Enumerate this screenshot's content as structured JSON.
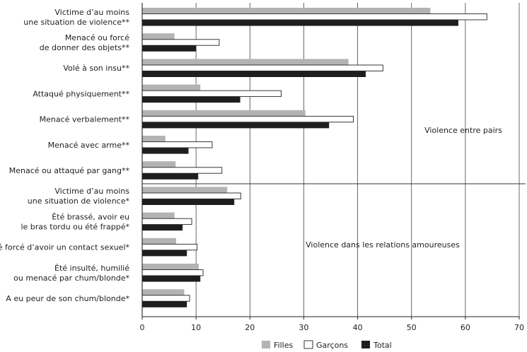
{
  "chart_data": {
    "type": "bar",
    "orientation": "horizontal",
    "xlim": [
      0,
      70
    ],
    "xticks": [
      0,
      10,
      20,
      30,
      40,
      50,
      60,
      70
    ],
    "grid": "vertical",
    "categories": [
      [
        "Victime d’au moins",
        "une situation de violence**"
      ],
      [
        "Menacé ou forcé",
        "de donner des objets**"
      ],
      [
        "Volé à son insu**"
      ],
      [
        "Attaqué physiquement**"
      ],
      [
        "Menacé verbalement**"
      ],
      [
        "Menacé avec arme**"
      ],
      [
        "Menacé ou attaqué par gang**"
      ],
      [
        "Victime d’au moins",
        "une situation de violence*"
      ],
      [
        "Été brassé, avoir eu",
        "le bras tordu ou été frappé*"
      ],
      [
        "Été forcé d’avoir un contact sexuel*"
      ],
      [
        "Été insulté, humilié",
        "ou menacé par chum/blonde*"
      ],
      [
        "A eu peur de son chum/blonde*"
      ]
    ],
    "series": [
      {
        "name": "Filles",
        "color": "#b3b3b3",
        "values": [
          53.5,
          6,
          38.3,
          10.8,
          30.3,
          4.3,
          6.2,
          15.8,
          6,
          6.3,
          10.5,
          7.8
        ]
      },
      {
        "name": "Garçons",
        "color": "#ffffff",
        "values": [
          64,
          14.3,
          44.7,
          25.8,
          39.2,
          13,
          14.8,
          18.3,
          9.2,
          10.2,
          11.3,
          8.8
        ]
      },
      {
        "name": "Total",
        "color": "#1e1e1e",
        "values": [
          58.7,
          10,
          41.5,
          18.2,
          34.7,
          8.6,
          10.4,
          17.1,
          7.5,
          8.3,
          10.8,
          8.3
        ]
      }
    ],
    "group_labels": [
      {
        "text": "Violence entre pairs"
      },
      {
        "text": "Violence dans les relations amoureuses"
      }
    ],
    "legend_position": "bottom"
  }
}
